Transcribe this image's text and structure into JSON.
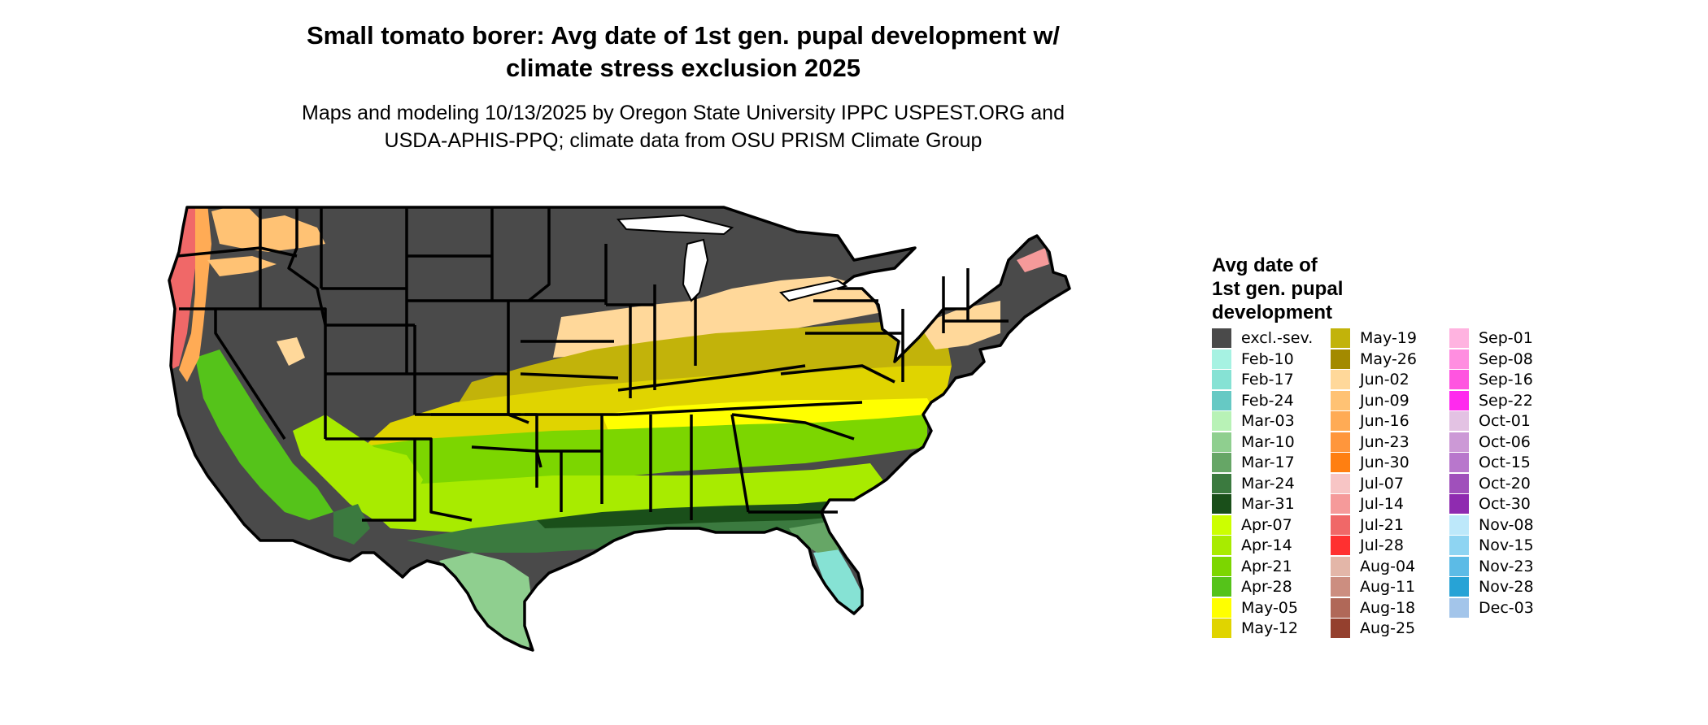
{
  "title_line1": "Small tomato borer: Avg date of 1st gen. pupal development w/",
  "title_line2": "climate stress exclusion 2025",
  "subtitle_line1": "Maps and modeling 10/13/2025 by Oregon State University IPPC USPEST.ORG and",
  "subtitle_line2": "USDA-APHIS-PPQ; climate data from OSU PRISM Climate Group",
  "legend": {
    "title_line1": "Avg date of",
    "title_line2": "1st gen. pupal",
    "title_line3": "development",
    "items": [
      {
        "label": "excl.-sev.",
        "color": "#4a4a4a"
      },
      {
        "label": "Feb-10",
        "color": "#a6f2e2"
      },
      {
        "label": "Feb-17",
        "color": "#86e2d4"
      },
      {
        "label": "Feb-24",
        "color": "#66c9c4"
      },
      {
        "label": "Mar-03",
        "color": "#b8f2b6"
      },
      {
        "label": "Mar-10",
        "color": "#8fcf8f"
      },
      {
        "label": "Mar-17",
        "color": "#66a666"
      },
      {
        "label": "Mar-24",
        "color": "#3b7a3f"
      },
      {
        "label": "Mar-31",
        "color": "#1a4f1a"
      },
      {
        "label": "Apr-07",
        "color": "#ccff00"
      },
      {
        "label": "Apr-14",
        "color": "#a8eb00"
      },
      {
        "label": "Apr-21",
        "color": "#7cd600"
      },
      {
        "label": "Apr-28",
        "color": "#55c31a"
      },
      {
        "label": "May-05",
        "color": "#ffff00"
      },
      {
        "label": "May-12",
        "color": "#e0d400"
      },
      {
        "label": "May-19",
        "color": "#c2b30a"
      },
      {
        "label": "May-26",
        "color": "#a38a00"
      },
      {
        "label": "Jun-02",
        "color": "#ffd89a"
      },
      {
        "label": "Jun-09",
        "color": "#ffc274"
      },
      {
        "label": "Jun-16",
        "color": "#ffab55"
      },
      {
        "label": "Jun-23",
        "color": "#ff963c"
      },
      {
        "label": "Jun-30",
        "color": "#ff7f11"
      },
      {
        "label": "Jul-07",
        "color": "#f7c5c5"
      },
      {
        "label": "Jul-14",
        "color": "#f59a9a"
      },
      {
        "label": "Jul-21",
        "color": "#f06868"
      },
      {
        "label": "Jul-28",
        "color": "#ff3030"
      },
      {
        "label": "Aug-04",
        "color": "#e3b6a8"
      },
      {
        "label": "Aug-11",
        "color": "#cc8e80"
      },
      {
        "label": "Aug-18",
        "color": "#b06858"
      },
      {
        "label": "Aug-25",
        "color": "#94402e"
      },
      {
        "label": "Sep-01",
        "color": "#ffb3e0"
      },
      {
        "label": "Sep-08",
        "color": "#ff8ee0"
      },
      {
        "label": "Sep-16",
        "color": "#ff55e0"
      },
      {
        "label": "Sep-22",
        "color": "#ff2aee"
      },
      {
        "label": "Oct-01",
        "color": "#e3c2e3"
      },
      {
        "label": "Oct-06",
        "color": "#cc99d6"
      },
      {
        "label": "Oct-15",
        "color": "#b877cc"
      },
      {
        "label": "Oct-20",
        "color": "#a050bb"
      },
      {
        "label": "Oct-30",
        "color": "#8f2bb0"
      },
      {
        "label": "Nov-08",
        "color": "#bde8fa"
      },
      {
        "label": "Nov-15",
        "color": "#8ed4f2"
      },
      {
        "label": "Nov-23",
        "color": "#5cbbe6"
      },
      {
        "label": "Nov-28",
        "color": "#27a3d6"
      },
      {
        "label": "Dec-03",
        "color": "#a3c5ea"
      }
    ]
  },
  "map_layers": {
    "base": "#4a4a4a",
    "outline": "#000000",
    "west_coast_red": "#f06868",
    "west_coast_orange": "#ffab55",
    "nw_orange": "#ffc274",
    "ohio_valley": "#ffd89a",
    "midsouth_olive": "#c2b30a",
    "midsouth_yellow": "#e0d400",
    "tn_yellow": "#ffff00",
    "south_green": "#7cd600",
    "south_lightgreen": "#a8eb00",
    "gulf_dark": "#3b7a3f",
    "gulf_darkest": "#1a4f1a",
    "texas_mint": "#8fcf8f",
    "florida_teal": "#86e2d4",
    "ca_green": "#55c31a"
  }
}
